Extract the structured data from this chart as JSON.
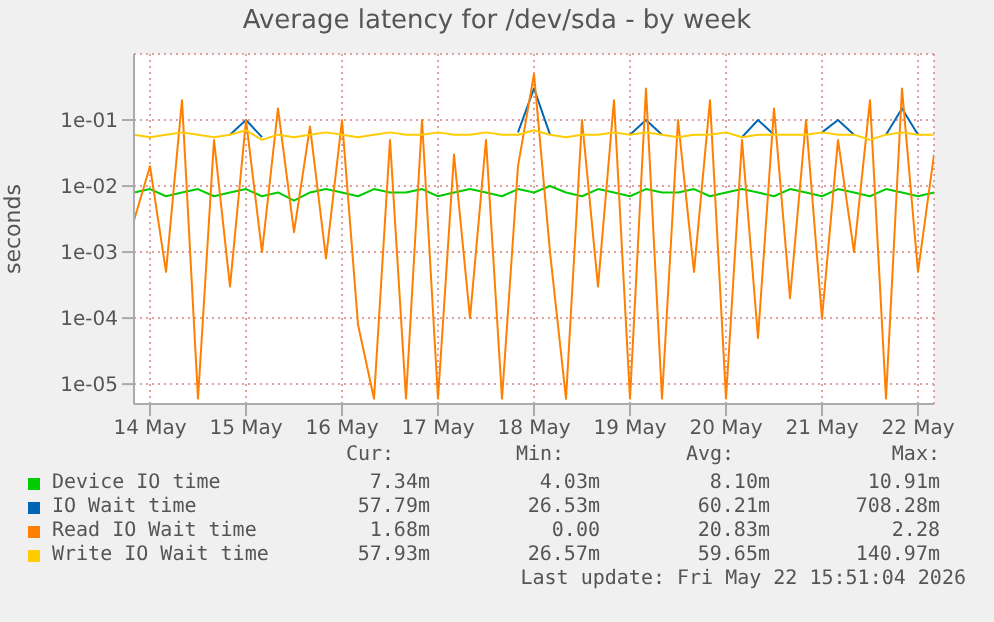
{
  "chart_data": {
    "type": "line",
    "title": "Average latency for /dev/sda - by week",
    "ylabel": "seconds",
    "log": "y",
    "grid": true,
    "legend": "bottom",
    "marker": "none",
    "line_style": "solid",
    "x": [
      "2026-05-13T20:00",
      "2026-05-14T00:00",
      "2026-05-14T04:00",
      "2026-05-14T08:00",
      "2026-05-14T12:00",
      "2026-05-14T16:00",
      "2026-05-14T20:00",
      "2026-05-15T00:00",
      "2026-05-15T04:00",
      "2026-05-15T08:00",
      "2026-05-15T12:00",
      "2026-05-15T16:00",
      "2026-05-15T20:00",
      "2026-05-16T00:00",
      "2026-05-16T04:00",
      "2026-05-16T08:00",
      "2026-05-16T12:00",
      "2026-05-16T16:00",
      "2026-05-16T20:00",
      "2026-05-17T00:00",
      "2026-05-17T04:00",
      "2026-05-17T08:00",
      "2026-05-17T12:00",
      "2026-05-17T16:00",
      "2026-05-17T20:00",
      "2026-05-18T00:00",
      "2026-05-18T04:00",
      "2026-05-18T08:00",
      "2026-05-18T12:00",
      "2026-05-18T16:00",
      "2026-05-18T20:00",
      "2026-05-19T00:00",
      "2026-05-19T04:00",
      "2026-05-19T08:00",
      "2026-05-19T12:00",
      "2026-05-19T16:00",
      "2026-05-19T20:00",
      "2026-05-20T00:00",
      "2026-05-20T04:00",
      "2026-05-20T08:00",
      "2026-05-20T12:00",
      "2026-05-20T16:00",
      "2026-05-20T20:00",
      "2026-05-21T00:00",
      "2026-05-21T04:00",
      "2026-05-21T08:00",
      "2026-05-21T12:00",
      "2026-05-21T16:00",
      "2026-05-21T20:00",
      "2026-05-22T00:00",
      "2026-05-22T04:00"
    ],
    "xlim": [
      "2026-05-13T20:00",
      "2026-05-22T04:00"
    ],
    "xticks": [
      {
        "value": "2026-05-14",
        "label": "14 May"
      },
      {
        "value": "2026-05-15",
        "label": "15 May"
      },
      {
        "value": "2026-05-16",
        "label": "16 May"
      },
      {
        "value": "2026-05-17",
        "label": "17 May"
      },
      {
        "value": "2026-05-18",
        "label": "18 May"
      },
      {
        "value": "2026-05-19",
        "label": "19 May"
      },
      {
        "value": "2026-05-20",
        "label": "20 May"
      },
      {
        "value": "2026-05-21",
        "label": "21 May"
      },
      {
        "value": "2026-05-22",
        "label": "22 May"
      }
    ],
    "ylim": [
      5e-06,
      1
    ],
    "yticks": [
      {
        "value": 1e-05,
        "label": "1e-05"
      },
      {
        "value": 0.0001,
        "label": "1e-04"
      },
      {
        "value": 0.001,
        "label": "1e-03"
      },
      {
        "value": 0.01,
        "label": "1e-02"
      },
      {
        "value": 0.1,
        "label": "1e-01"
      }
    ],
    "series": [
      {
        "name": "Device IO time",
        "color": "#00cc00",
        "values": [
          0.008,
          0.009,
          0.007,
          0.008,
          0.009,
          0.007,
          0.008,
          0.009,
          0.007,
          0.008,
          0.006,
          0.008,
          0.009,
          0.008,
          0.007,
          0.009,
          0.008,
          0.008,
          0.009,
          0.007,
          0.008,
          0.009,
          0.008,
          0.007,
          0.009,
          0.008,
          0.01,
          0.008,
          0.007,
          0.009,
          0.008,
          0.007,
          0.009,
          0.008,
          0.008,
          0.009,
          0.007,
          0.008,
          0.009,
          0.008,
          0.007,
          0.009,
          0.008,
          0.007,
          0.009,
          0.008,
          0.007,
          0.009,
          0.008,
          0.007,
          0.008
        ]
      },
      {
        "name": "IO Wait time",
        "color": "#0066b3",
        "values": [
          null,
          null,
          null,
          null,
          null,
          null,
          0.06,
          0.1,
          0.055,
          null,
          null,
          null,
          null,
          null,
          null,
          null,
          null,
          null,
          null,
          null,
          null,
          null,
          null,
          null,
          0.065,
          0.3,
          0.06,
          null,
          null,
          null,
          null,
          0.06,
          0.1,
          0.06,
          null,
          null,
          null,
          null,
          0.055,
          0.1,
          0.06,
          null,
          null,
          0.065,
          0.1,
          0.06,
          null,
          0.06,
          0.15,
          0.06,
          null
        ]
      },
      {
        "name": "Read IO Wait time",
        "color": "#ff8000",
        "values": [
          0.003,
          0.02,
          0.0005,
          0.2,
          6e-06,
          0.05,
          0.0003,
          0.1,
          0.001,
          0.15,
          0.002,
          0.08,
          0.0008,
          0.1,
          8e-05,
          6e-06,
          0.05,
          6e-06,
          0.1,
          6e-06,
          0.03,
          0.0001,
          0.05,
          6e-06,
          0.02,
          0.5,
          0.001,
          6e-06,
          0.1,
          0.0003,
          0.2,
          6e-06,
          0.3,
          6e-06,
          0.1,
          0.0005,
          0.2,
          6e-06,
          0.05,
          5e-05,
          0.15,
          0.0002,
          0.1,
          0.0001,
          0.05,
          0.001,
          0.2,
          6e-06,
          0.3,
          0.0005,
          0.03
        ]
      },
      {
        "name": "Write IO Wait time",
        "color": "#ffcc00",
        "values": [
          0.06,
          0.055,
          0.06,
          0.065,
          0.06,
          0.055,
          0.06,
          0.07,
          0.05,
          0.06,
          0.055,
          0.06,
          0.065,
          0.06,
          0.055,
          0.06,
          0.065,
          0.06,
          0.06,
          0.065,
          0.06,
          0.06,
          0.065,
          0.06,
          0.06,
          0.07,
          0.06,
          0.055,
          0.06,
          0.06,
          0.065,
          0.06,
          0.065,
          0.06,
          0.055,
          0.06,
          0.06,
          0.065,
          0.055,
          0.06,
          0.06,
          0.06,
          0.06,
          0.065,
          0.06,
          0.06,
          0.05,
          0.06,
          0.065,
          0.06,
          0.06
        ]
      }
    ],
    "annotations": [
      "Cur:",
      "Min:",
      "Avg:",
      "Max:",
      "7.34m",
      "4.03m",
      "8.10m",
      "10.91m",
      "57.79m",
      "26.53m",
      "60.21m",
      "708.28m",
      "1.68m",
      "0.00",
      "20.83m",
      "2.28",
      "57.93m",
      "26.57m",
      "59.65m",
      "140.97m",
      "Last update: Fri May 22 15:51:04 2026"
    ]
  }
}
